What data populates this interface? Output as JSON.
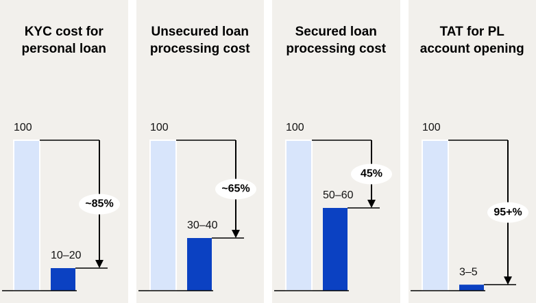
{
  "chart_data": [
    {
      "type": "bar",
      "title": "KYC cost for personal loan",
      "values": [
        100,
        15
      ],
      "value_labels": [
        "100",
        "10–20"
      ],
      "colors": [
        "#d8e5fb",
        "#0b41c2"
      ],
      "ylim": [
        0,
        100
      ],
      "annotation": "~85%"
    },
    {
      "type": "bar",
      "title": "Unsecured loan processing cost",
      "values": [
        100,
        35
      ],
      "value_labels": [
        "100",
        "30–40"
      ],
      "colors": [
        "#d8e5fb",
        "#0b41c2"
      ],
      "ylim": [
        0,
        100
      ],
      "annotation": "~65%"
    },
    {
      "type": "bar",
      "title": "Secured loan processing cost",
      "values": [
        100,
        55
      ],
      "value_labels": [
        "100",
        "50–60"
      ],
      "colors": [
        "#d8e5fb",
        "#0b41c2"
      ],
      "ylim": [
        0,
        100
      ],
      "annotation": "45%"
    },
    {
      "type": "bar",
      "title": "TAT for PL account opening",
      "values": [
        100,
        4
      ],
      "value_labels": [
        "100",
        "3–5"
      ],
      "colors": [
        "#d8e5fb",
        "#0b41c2"
      ],
      "ylim": [
        0,
        100
      ],
      "annotation": "95+%"
    }
  ]
}
